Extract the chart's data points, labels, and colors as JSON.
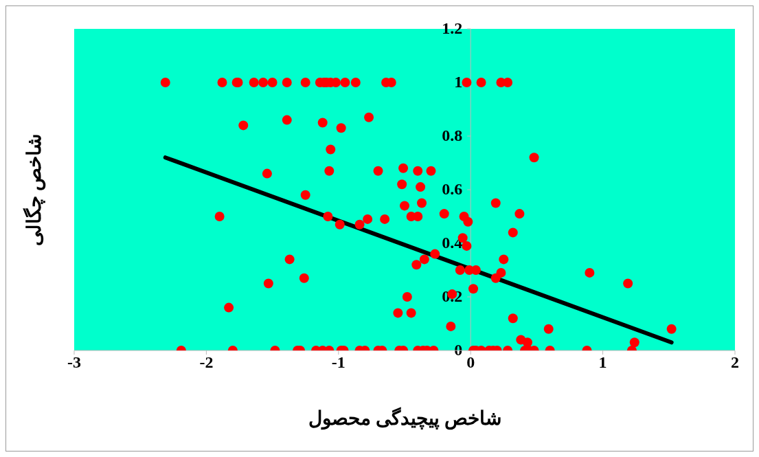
{
  "chart_data": {
    "type": "scatter",
    "xlabel": "شاخص پیچیدگی محصول",
    "ylabel": "شاخص چگالی",
    "xlim": [
      -3,
      2
    ],
    "xticks": [
      -3,
      -2,
      -1,
      0,
      1,
      2
    ],
    "ylim": [
      0,
      1.2
    ],
    "yticks": [
      0,
      0.2,
      0.4,
      0.6,
      0.8,
      1,
      1.2
    ],
    "grid": false,
    "series": [
      {
        "color": "#ff0000",
        "marker": "circle",
        "x": [
          -2.31,
          -1.88,
          -1.77,
          -1.76,
          -1.64,
          -1.57,
          -1.5,
          -1.39,
          -1.25,
          -1.14,
          -1.11,
          -1.09,
          -1.06,
          -1.02,
          -0.95,
          -0.87,
          -0.64,
          -0.6,
          -0.03,
          0.08,
          0.23,
          0.28,
          -2.19,
          -1.8,
          -1.48,
          -1.31,
          -1.29,
          -1.17,
          -1.12,
          -1.07,
          -0.98,
          -0.96,
          -0.84,
          -0.8,
          -0.7,
          -0.67,
          -0.54,
          -0.51,
          -0.4,
          -0.36,
          -0.33,
          -0.28,
          0.02,
          0.04,
          0.08,
          0.14,
          0.17,
          0.2,
          0.28,
          0.41,
          0.44,
          0.48,
          0.6,
          0.88,
          1.22,
          -1.72,
          -1.39,
          -1.12,
          -0.98,
          -0.77,
          -1.06,
          -1.07,
          -0.7,
          -0.51,
          -0.4,
          -0.3,
          -1.54,
          -0.52,
          -0.38,
          -1.25,
          -0.5,
          -0.37,
          -0.45,
          -0.4,
          -0.2,
          -0.05,
          -0.02,
          -0.78,
          -0.65,
          -0.84,
          -0.99,
          -1.08,
          -1.9,
          -0.06,
          -0.03,
          -0.27,
          -0.35,
          -0.41,
          -0.08,
          -0.01,
          0.04,
          0.02,
          -0.14,
          -0.48,
          -0.55,
          -0.45,
          -0.15,
          -1.37,
          -1.26,
          -1.53,
          -1.83,
          0.48,
          0.19,
          0.37,
          0.32,
          0.25,
          0.23,
          0.19,
          0.9,
          1.19,
          0.32,
          0.59,
          1.52,
          0.38,
          0.43,
          1.24
        ],
        "values": [
          1,
          1,
          1,
          1,
          1,
          1,
          1,
          1,
          1,
          1,
          1,
          1,
          1,
          1,
          1,
          1,
          1,
          1,
          1,
          1,
          1,
          1,
          0,
          0,
          0,
          0,
          0,
          0,
          0,
          0,
          0,
          0,
          0,
          0,
          0,
          0,
          0,
          0,
          0,
          0,
          0,
          0,
          0,
          0,
          0,
          0,
          0,
          0,
          0,
          0,
          0,
          0,
          0,
          0,
          0,
          0.84,
          0.86,
          0.85,
          0.83,
          0.87,
          0.75,
          0.67,
          0.67,
          0.68,
          0.67,
          0.67,
          0.66,
          0.62,
          0.61,
          0.58,
          0.54,
          0.55,
          0.5,
          0.5,
          0.51,
          0.5,
          0.48,
          0.49,
          0.49,
          0.47,
          0.47,
          0.5,
          0.5,
          0.42,
          0.39,
          0.36,
          0.34,
          0.32,
          0.3,
          0.3,
          0.3,
          0.23,
          0.21,
          0.2,
          0.14,
          0.14,
          0.09,
          0.34,
          0.27,
          0.25,
          0.16,
          0.72,
          0.55,
          0.51,
          0.44,
          0.34,
          0.29,
          0.27,
          0.29,
          0.25,
          0.12,
          0.08,
          0.08,
          0.04,
          0.03,
          0.03
        ]
      },
      {
        "type": "line",
        "color": "#000000",
        "x": [
          -2.31,
          1.52
        ],
        "values": [
          0.72,
          0.03
        ]
      }
    ]
  }
}
